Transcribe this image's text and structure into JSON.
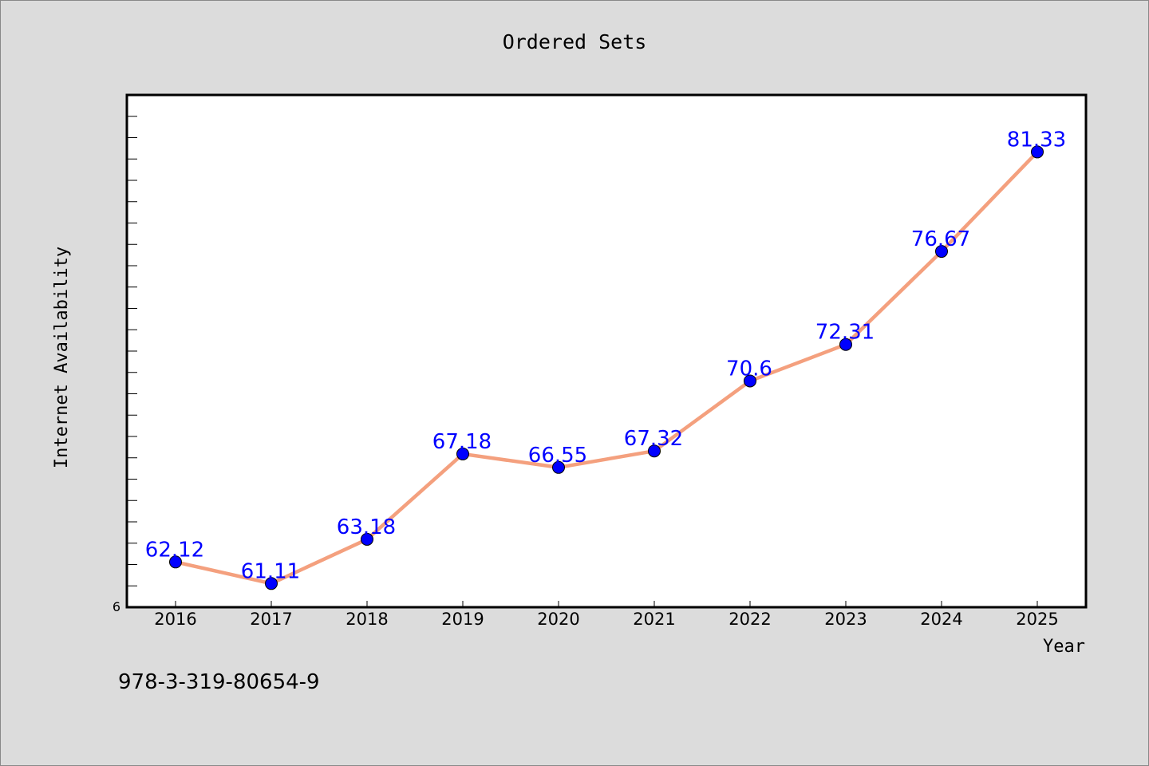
{
  "colors": {
    "page_background": "#dcdcdc",
    "plot_background": "#ffffff",
    "line": "#f4a07e",
    "marker": "#0000ff",
    "data_label": "#0000ff",
    "text": "#000000"
  },
  "chart_data": {
    "type": "line",
    "title": "Ordered Sets",
    "xlabel": "Year",
    "ylabel": "Internet Availability",
    "categories": [
      "2016",
      "2017",
      "2018",
      "2019",
      "2020",
      "2021",
      "2022",
      "2023",
      "2024",
      "2025"
    ],
    "series": [
      {
        "values": [
          62.12,
          61.11,
          63.18,
          67.18,
          66.55,
          67.32,
          70.6,
          72.31,
          76.67,
          81.33
        ],
        "labels": [
          "62.12",
          "61.11",
          "63.18",
          "67.18",
          "66.55",
          "67.32",
          "70.6",
          "72.31",
          "76.67",
          "81.33"
        ]
      }
    ],
    "ylim": [
      60,
      84
    ],
    "y_tick_label": "6",
    "grid": false,
    "legend": "none"
  },
  "footer_text": "978-3-319-80654-9"
}
